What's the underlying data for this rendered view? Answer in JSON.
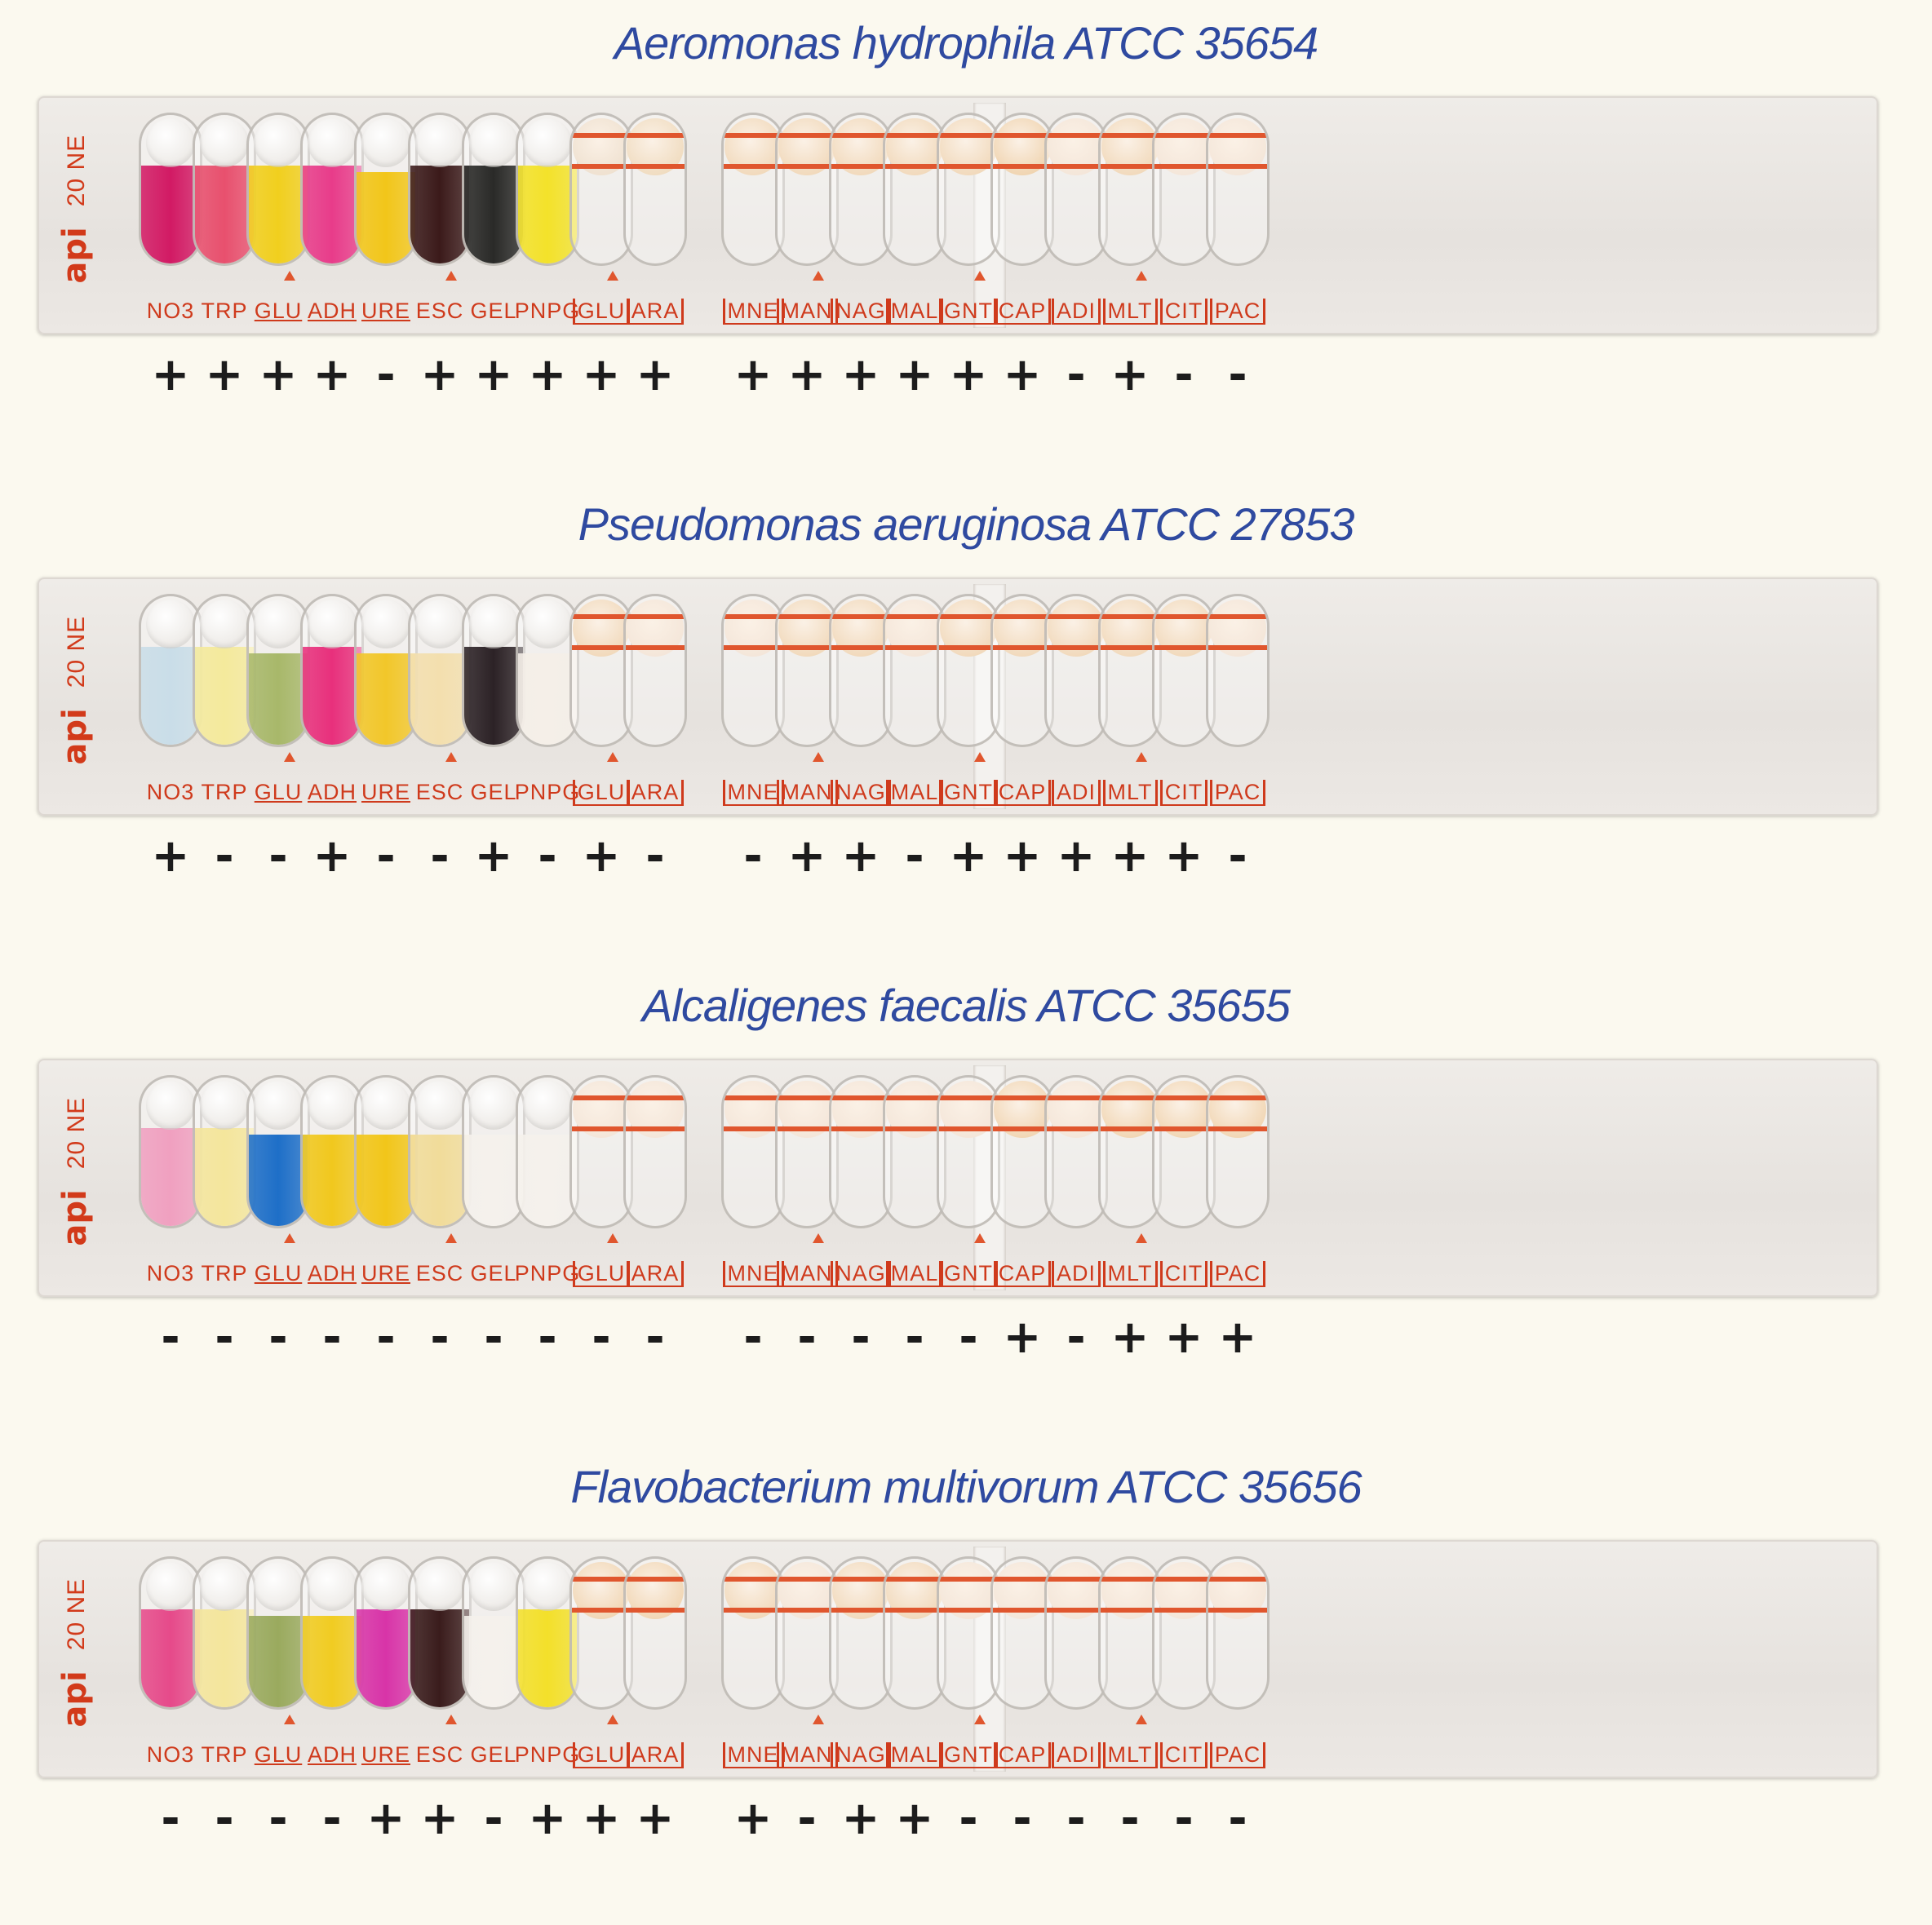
{
  "strips": [
    {
      "organism": "Aeromonas hydrophila ATCC 35654",
      "logo": {
        "brand": "api",
        "model": "20 NE"
      },
      "tests": [
        {
          "label": "NO3",
          "result": "+",
          "color": "#d21a64"
        },
        {
          "label": "TRP",
          "result": "+",
          "color": "#e8506e"
        },
        {
          "label": "GLU",
          "result": "+",
          "color": "#f1cf1e"
        },
        {
          "label": "ADH",
          "result": "+",
          "color": "#e83c8a"
        },
        {
          "label": "URE",
          "result": "-",
          "color": "#f2c61a"
        },
        {
          "label": "ESC",
          "result": "+",
          "color": "#3b1a1a"
        },
        {
          "label": "GEL",
          "result": "+",
          "color": "#2a2a28"
        },
        {
          "label": "PNPG",
          "result": "+",
          "color": "#f3e22a"
        },
        {
          "label": "GLU",
          "result": "+",
          "color": "#efe1d0"
        },
        {
          "label": "ARA",
          "result": "+",
          "color": "#f0dcc0"
        },
        {
          "label": "MNE",
          "result": "+",
          "color": "#f1d9bb"
        },
        {
          "label": "MAN",
          "result": "+",
          "color": "#f1d9bb"
        },
        {
          "label": "NAG",
          "result": "+",
          "color": "#f1d9bb"
        },
        {
          "label": "MAL",
          "result": "+",
          "color": "#f1d9bb"
        },
        {
          "label": "GNT",
          "result": "+",
          "color": "#f1d9bb"
        },
        {
          "label": "CAP",
          "result": "+",
          "color": "#f0d4b0"
        },
        {
          "label": "ADI",
          "result": "-",
          "color": "#f4e6d9"
        },
        {
          "label": "MLT",
          "result": "+",
          "color": "#f1d9bb"
        },
        {
          "label": "CIT",
          "result": "-",
          "color": "#f4e6d9"
        },
        {
          "label": "PAC",
          "result": "-",
          "color": "#f4e6d9"
        }
      ]
    },
    {
      "organism": "Pseudomonas aeruginosa ATCC 27853",
      "logo": {
        "brand": "api",
        "model": "20 NE"
      },
      "tests": [
        {
          "label": "NO3",
          "result": "+",
          "color": "#c9dde8"
        },
        {
          "label": "TRP",
          "result": "-",
          "color": "#f4ea9c"
        },
        {
          "label": "GLU",
          "result": "-",
          "color": "#a8b86a"
        },
        {
          "label": "ADH",
          "result": "+",
          "color": "#e8307c"
        },
        {
          "label": "URE",
          "result": "-",
          "color": "#f2c72a"
        },
        {
          "label": "ESC",
          "result": "-",
          "color": "#f3dfae"
        },
        {
          "label": "GEL",
          "result": "+",
          "color": "#2c2226"
        },
        {
          "label": "PNPG",
          "result": "-",
          "color": "#f5efe8"
        },
        {
          "label": "GLU",
          "result": "+",
          "color": "#f1d9bb"
        },
        {
          "label": "ARA",
          "result": "-",
          "color": "#f4e6d9"
        },
        {
          "label": "MNE",
          "result": "-",
          "color": "#f4e6d9"
        },
        {
          "label": "MAN",
          "result": "+",
          "color": "#f1d9bb"
        },
        {
          "label": "NAG",
          "result": "+",
          "color": "#f1d9bb"
        },
        {
          "label": "MAL",
          "result": "-",
          "color": "#f4e6d9"
        },
        {
          "label": "GNT",
          "result": "+",
          "color": "#f1d9bb"
        },
        {
          "label": "CAP",
          "result": "+",
          "color": "#f1d9bb"
        },
        {
          "label": "ADI",
          "result": "+",
          "color": "#f1d9bb"
        },
        {
          "label": "MLT",
          "result": "+",
          "color": "#f1d9bb"
        },
        {
          "label": "CIT",
          "result": "+",
          "color": "#f1d9bb"
        },
        {
          "label": "PAC",
          "result": "-",
          "color": "#f4e6d9"
        }
      ]
    },
    {
      "organism": "Alcaligenes faecalis ATCC 35655",
      "logo": {
        "brand": "api",
        "model": "20 NE"
      },
      "tests": [
        {
          "label": "NO3",
          "result": "-",
          "color": "#f0a0c0"
        },
        {
          "label": "TRP",
          "result": "-",
          "color": "#f4e69c"
        },
        {
          "label": "GLU",
          "result": "-",
          "color": "#1e6fc8"
        },
        {
          "label": "ADH",
          "result": "-",
          "color": "#f1c81e"
        },
        {
          "label": "URE",
          "result": "-",
          "color": "#f2c61a"
        },
        {
          "label": "ESC",
          "result": "-",
          "color": "#f1dc9a"
        },
        {
          "label": "GEL",
          "result": "-",
          "color": "#f5f1ec"
        },
        {
          "label": "PNPG",
          "result": "-",
          "color": "#f5f1ec"
        },
        {
          "label": "GLU",
          "result": "-",
          "color": "#f4e6d9"
        },
        {
          "label": "ARA",
          "result": "-",
          "color": "#f4e6d9"
        },
        {
          "label": "MNE",
          "result": "-",
          "color": "#f4e6d9"
        },
        {
          "label": "MAN",
          "result": "-",
          "color": "#f4e6d9"
        },
        {
          "label": "NAG",
          "result": "-",
          "color": "#f4e6d9"
        },
        {
          "label": "MAL",
          "result": "-",
          "color": "#f4e6d9"
        },
        {
          "label": "GNT",
          "result": "-",
          "color": "#f4e6d9"
        },
        {
          "label": "CAP",
          "result": "+",
          "color": "#f1d6b4"
        },
        {
          "label": "ADI",
          "result": "-",
          "color": "#f4e6d9"
        },
        {
          "label": "MLT",
          "result": "+",
          "color": "#f1d6b4"
        },
        {
          "label": "CIT",
          "result": "+",
          "color": "#f1d6b4"
        },
        {
          "label": "PAC",
          "result": "+",
          "color": "#f1d6b4"
        }
      ]
    },
    {
      "organism": "Flavobacterium multivorum ATCC 35656",
      "logo": {
        "brand": "api",
        "model": "20 NE"
      },
      "tests": [
        {
          "label": "NO3",
          "result": "-",
          "color": "#e64a8a"
        },
        {
          "label": "TRP",
          "result": "-",
          "color": "#f4e69c"
        },
        {
          "label": "GLU",
          "result": "-",
          "color": "#9aaa5e"
        },
        {
          "label": "ADH",
          "result": "-",
          "color": "#f1cc22"
        },
        {
          "label": "URE",
          "result": "+",
          "color": "#d834a8"
        },
        {
          "label": "ESC",
          "result": "+",
          "color": "#3a1c1c"
        },
        {
          "label": "GEL",
          "result": "-",
          "color": "#f5f1ec"
        },
        {
          "label": "PNPG",
          "result": "+",
          "color": "#f3e02a"
        },
        {
          "label": "GLU",
          "result": "+",
          "color": "#f1d6b4"
        },
        {
          "label": "ARA",
          "result": "+",
          "color": "#f1d6b4"
        },
        {
          "label": "MNE",
          "result": "+",
          "color": "#f1d9bb"
        },
        {
          "label": "MAN",
          "result": "-",
          "color": "#f4e6d9"
        },
        {
          "label": "NAG",
          "result": "+",
          "color": "#f1d9bb"
        },
        {
          "label": "MAL",
          "result": "+",
          "color": "#f1d9bb"
        },
        {
          "label": "GNT",
          "result": "-",
          "color": "#f4e6d9"
        },
        {
          "label": "CAP",
          "result": "-",
          "color": "#f4e6d9"
        },
        {
          "label": "ADI",
          "result": "-",
          "color": "#f4e6d9"
        },
        {
          "label": "MLT",
          "result": "-",
          "color": "#f4e6d9"
        },
        {
          "label": "CIT",
          "result": "-",
          "color": "#f4e6d9"
        },
        {
          "label": "PAC",
          "result": "-",
          "color": "#f4e6d9"
        }
      ]
    }
  ]
}
